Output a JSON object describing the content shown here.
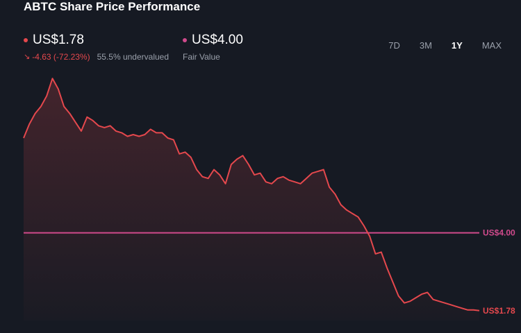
{
  "header": {
    "title": "ABTC Share Price Performance"
  },
  "price": {
    "value": "US$1.78",
    "change": "-4.63 (-72.23%)",
    "valuation": "55.5% undervalued",
    "color": "#e5484d"
  },
  "fair_value": {
    "value": "US$4.00",
    "label": "Fair Value",
    "color": "#d04a8c"
  },
  "periods": [
    {
      "label": "7D",
      "active": false
    },
    {
      "label": "3M",
      "active": false
    },
    {
      "label": "1Y",
      "active": true
    },
    {
      "label": "MAX",
      "active": false
    }
  ],
  "chart_data": {
    "type": "area",
    "period": "1Y",
    "ylim": [
      1.5,
      8.5
    ],
    "series": [
      {
        "values": [
          6.7,
          7.1,
          7.4,
          7.6,
          7.9,
          8.4,
          8.1,
          7.6,
          7.4,
          7.15,
          6.9,
          7.3,
          7.2,
          7.05,
          7.0,
          7.05,
          6.9,
          6.85,
          6.75,
          6.8,
          6.75,
          6.8,
          6.95,
          6.85,
          6.85,
          6.7,
          6.65,
          6.25,
          6.3,
          6.15,
          5.8,
          5.6,
          5.55,
          5.8,
          5.65,
          5.4,
          5.95,
          6.1,
          6.2,
          5.95,
          5.65,
          5.7,
          5.45,
          5.4,
          5.55,
          5.6,
          5.5,
          5.45,
          5.4,
          5.55,
          5.7,
          5.75,
          5.8,
          5.3,
          5.1,
          4.8,
          4.65,
          4.55,
          4.45,
          4.2,
          3.9,
          3.4,
          3.45,
          3.0,
          2.6,
          2.2,
          2.0,
          2.05,
          2.15,
          2.25,
          2.3,
          2.1,
          2.05,
          2.0,
          1.95,
          1.9,
          1.85,
          1.8,
          1.8,
          1.78
        ],
        "end_label": "US$1.78",
        "color": "#e5484d"
      },
      {
        "values": [
          4.0,
          4.0
        ],
        "end_label": "US$4.00",
        "color": "#d04a8c"
      }
    ]
  }
}
